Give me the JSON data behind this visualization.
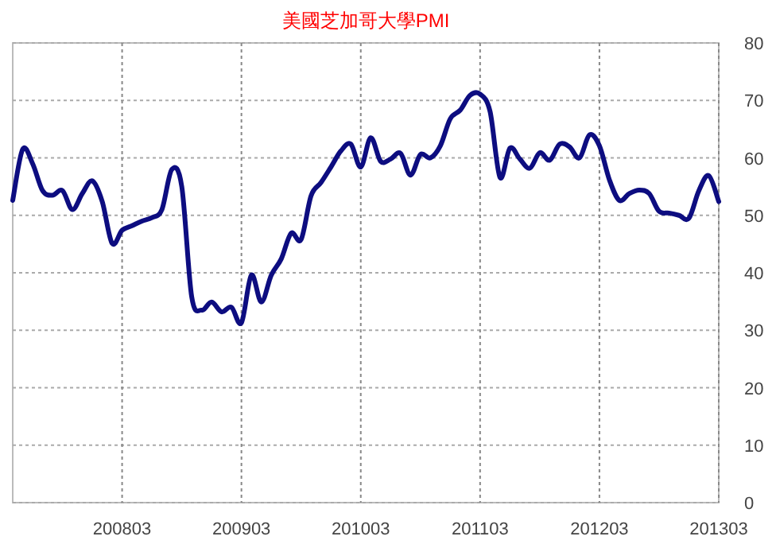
{
  "chart_data": {
    "type": "line",
    "title": "美國芝加哥大學PMI",
    "categories": [
      null,
      null,
      null,
      null,
      null,
      null,
      null,
      null,
      null,
      null,
      null,
      "200803",
      null,
      null,
      null,
      null,
      null,
      null,
      null,
      null,
      null,
      null,
      null,
      "200903",
      null,
      null,
      null,
      null,
      null,
      null,
      null,
      null,
      null,
      null,
      null,
      "201003",
      null,
      null,
      null,
      null,
      null,
      null,
      null,
      null,
      null,
      null,
      null,
      "201103",
      null,
      null,
      null,
      null,
      null,
      null,
      null,
      null,
      null,
      null,
      null,
      "201203",
      null,
      null,
      null,
      null,
      null,
      null,
      null,
      null,
      null,
      null,
      null,
      "201303"
    ],
    "series": [
      {
        "color": "#0d0d80",
        "values": [
          52.6,
          61.5,
          59,
          54.3,
          53.5,
          54.3,
          51,
          53.8,
          56,
          52.4,
          45.1,
          47.4,
          48.2,
          49,
          49.6,
          51,
          58,
          55,
          35.8,
          33.5,
          34.9,
          33.2,
          34,
          31.3,
          39.6,
          34.9,
          39.6,
          42.4,
          46.9,
          45.8,
          53.4,
          55.7,
          58.4,
          61.2,
          62.4,
          58.4,
          63.5,
          59.4,
          59.8,
          60.8,
          57,
          60.6,
          60,
          62.1,
          66.8,
          68.3,
          70.9,
          71.1,
          68.1,
          56.6,
          61.7,
          59.8,
          58.2,
          60.9,
          59.6,
          62.4,
          61.9,
          60,
          64,
          62.1,
          56.2,
          52.6,
          53.8,
          54.4,
          53.8,
          50.7,
          50.4,
          50,
          49.5,
          54.3,
          56.9,
          52.4
        ]
      }
    ],
    "ylim": [
      0,
      80
    ],
    "yticks": [
      0,
      10,
      20,
      30,
      40,
      50,
      60,
      70,
      80
    ],
    "grid": true
  }
}
